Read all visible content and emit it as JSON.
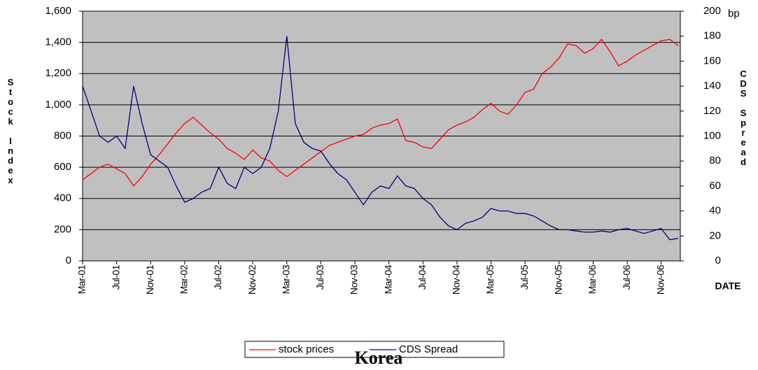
{
  "chart_data": {
    "type": "line",
    "title": "Korea",
    "y_label": "Stock Index",
    "y2_label": "CDS Spread",
    "y2_unit": "bp",
    "x_label": "DATE",
    "categories": [
      "Mar-01",
      null,
      null,
      null,
      "Jul-01",
      null,
      null,
      null,
      "Nov-01",
      null,
      null,
      null,
      "Mar-02",
      null,
      null,
      null,
      "Jul-02",
      null,
      null,
      null,
      "Nov-02",
      null,
      null,
      null,
      "Mar-03",
      null,
      null,
      null,
      "Jul-03",
      null,
      null,
      null,
      "Nov-03",
      null,
      null,
      null,
      "Mar-04",
      null,
      null,
      null,
      "Jul-04",
      null,
      null,
      null,
      "Nov-04",
      null,
      null,
      null,
      "Mar-05",
      null,
      null,
      null,
      "Jul-05",
      null,
      null,
      null,
      "Nov-05",
      null,
      null,
      null,
      "Mar-06",
      null,
      null,
      null,
      "Jul-06",
      null,
      null,
      null,
      "Nov-06",
      null,
      null
    ],
    "series": [
      {
        "name": "stock prices",
        "color": "#ff0000",
        "axis": "y",
        "values": [
          520,
          560,
          600,
          620,
          590,
          560,
          480,
          540,
          620,
          680,
          750,
          820,
          880,
          920,
          870,
          820,
          780,
          720,
          690,
          650,
          710,
          660,
          640,
          580,
          540,
          580,
          620,
          660,
          700,
          740,
          760,
          780,
          800,
          810,
          850,
          870,
          880,
          910,
          770,
          760,
          730,
          720,
          780,
          840,
          870,
          890,
          920,
          970,
          1010,
          960,
          940,
          1000,
          1080,
          1100,
          1200,
          1240,
          1300,
          1390,
          1380,
          1330,
          1360,
          1420,
          1340,
          1250,
          1280,
          1320,
          1350,
          1380,
          1410,
          1420,
          1380
        ]
      },
      {
        "name": "CDS Spread",
        "color": "#000080",
        "axis": "y2",
        "values": [
          140,
          120,
          100,
          95,
          100,
          90,
          140,
          110,
          85,
          80,
          75,
          60,
          47,
          50,
          55,
          58,
          75,
          62,
          58,
          75,
          70,
          75,
          90,
          120,
          180,
          110,
          95,
          90,
          88,
          78,
          70,
          65,
          55,
          45,
          55,
          60,
          58,
          68,
          60,
          58,
          50,
          45,
          35,
          28,
          25,
          30,
          32,
          35,
          42,
          40,
          40,
          38,
          38,
          36,
          32,
          28,
          25,
          25,
          24,
          23,
          23,
          24,
          23,
          25,
          26,
          24,
          22,
          24,
          26,
          17,
          18
        ]
      }
    ],
    "ylim": [
      0,
      1600
    ],
    "yticks": [
      0,
      200,
      400,
      600,
      800,
      {
        "value": 1000,
        "label": "1,000"
      },
      {
        "value": 1200,
        "label": "1,200"
      },
      {
        "value": 1400,
        "label": "1,400"
      },
      {
        "value": 1600,
        "label": "1,600"
      }
    ],
    "y2lim": [
      0,
      200
    ],
    "y2ticks": [
      0,
      20,
      40,
      60,
      80,
      100,
      120,
      140,
      160,
      180,
      200
    ],
    "grid": true,
    "legend": "bottom",
    "background": "#c0c0c0"
  }
}
